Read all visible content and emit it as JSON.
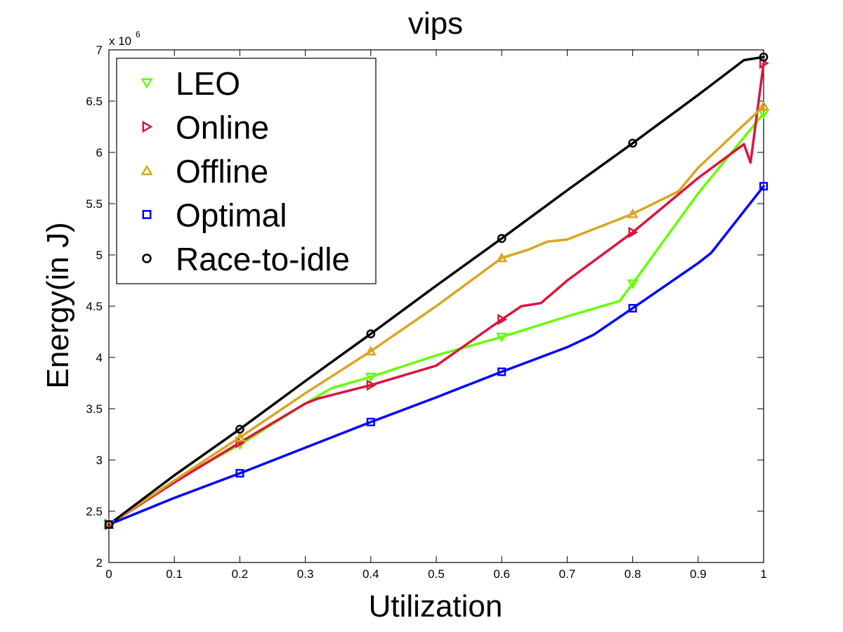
{
  "chart_data": {
    "type": "line",
    "title": "vips",
    "xlabel": "Utilization",
    "ylabel": "Energy(in J)",
    "y_multiplier_base": "x 10",
    "y_multiplier_exp": "6",
    "xlim": [
      0,
      1
    ],
    "ylim": [
      2,
      7
    ],
    "grid": false,
    "legend_position": "top-left",
    "xticks": [
      "0",
      "0.1",
      "0.2",
      "0.3",
      "0.4",
      "0.5",
      "0.6",
      "0.7",
      "0.8",
      "0.9",
      "1"
    ],
    "yticks": [
      "2",
      "2.5",
      "3",
      "3.5",
      "4",
      "4.5",
      "5",
      "5.5",
      "6",
      "6.5",
      "7"
    ],
    "series": [
      {
        "name": "LEO",
        "color": "#66ff00",
        "marker": "triangle-down",
        "x": [
          0,
          0.1,
          0.2,
          0.3,
          0.34,
          0.4,
          0.5,
          0.6,
          0.7,
          0.78,
          0.8,
          0.9,
          1.0
        ],
        "y": [
          2.37,
          2.8,
          3.15,
          3.55,
          3.7,
          3.81,
          4.02,
          4.2,
          4.4,
          4.55,
          4.72,
          5.6,
          6.38
        ],
        "marker_x": [
          0,
          0.2,
          0.4,
          0.6,
          0.8,
          1.0
        ],
        "marker_y": [
          2.37,
          3.15,
          3.81,
          4.2,
          4.72,
          6.38
        ]
      },
      {
        "name": "Online",
        "color": "#dc143c",
        "marker": "triangle-right",
        "x": [
          0,
          0.1,
          0.2,
          0.3,
          0.32,
          0.4,
          0.5,
          0.6,
          0.63,
          0.66,
          0.7,
          0.8,
          0.9,
          0.97,
          0.98,
          1.0
        ],
        "y": [
          2.37,
          2.78,
          3.17,
          3.55,
          3.6,
          3.73,
          3.92,
          4.37,
          4.5,
          4.53,
          4.75,
          5.22,
          5.75,
          6.08,
          5.9,
          6.87
        ],
        "marker_x": [
          0,
          0.2,
          0.4,
          0.6,
          0.8,
          1.0
        ],
        "marker_y": [
          2.37,
          3.17,
          3.73,
          4.37,
          5.22,
          6.87
        ]
      },
      {
        "name": "Offline",
        "color": "#daa520",
        "marker": "triangle-up",
        "x": [
          0,
          0.1,
          0.2,
          0.3,
          0.4,
          0.5,
          0.6,
          0.64,
          0.67,
          0.7,
          0.8,
          0.87,
          0.9,
          1.0
        ],
        "y": [
          2.37,
          2.8,
          3.22,
          3.65,
          4.06,
          4.5,
          4.97,
          5.05,
          5.13,
          5.15,
          5.4,
          5.62,
          5.85,
          6.45
        ],
        "marker_x": [
          0,
          0.2,
          0.4,
          0.6,
          0.8,
          1.0
        ],
        "marker_y": [
          2.37,
          3.22,
          4.06,
          4.97,
          5.4,
          6.45
        ]
      },
      {
        "name": "Optimal",
        "color": "#0000ff",
        "marker": "square",
        "x": [
          0,
          0.1,
          0.2,
          0.3,
          0.4,
          0.5,
          0.6,
          0.7,
          0.74,
          0.8,
          0.9,
          0.92,
          1.0
        ],
        "y": [
          2.37,
          2.63,
          2.87,
          3.12,
          3.37,
          3.61,
          3.86,
          4.1,
          4.22,
          4.48,
          4.92,
          5.02,
          5.67
        ],
        "marker_x": [
          0,
          0.2,
          0.4,
          0.6,
          0.8,
          1.0
        ],
        "marker_y": [
          2.37,
          2.87,
          3.37,
          3.86,
          4.48,
          5.67
        ]
      },
      {
        "name": "Race-to-idle",
        "color": "#000000",
        "marker": "circle",
        "x": [
          0,
          0.1,
          0.2,
          0.3,
          0.4,
          0.5,
          0.6,
          0.7,
          0.8,
          0.9,
          0.97,
          1.0
        ],
        "y": [
          2.37,
          2.85,
          3.3,
          3.77,
          4.23,
          4.7,
          5.16,
          5.63,
          6.09,
          6.56,
          6.9,
          6.93
        ],
        "marker_x": [
          0,
          0.2,
          0.4,
          0.6,
          0.8,
          1.0
        ],
        "marker_y": [
          2.37,
          3.3,
          4.23,
          5.16,
          6.09,
          6.93
        ]
      }
    ]
  }
}
